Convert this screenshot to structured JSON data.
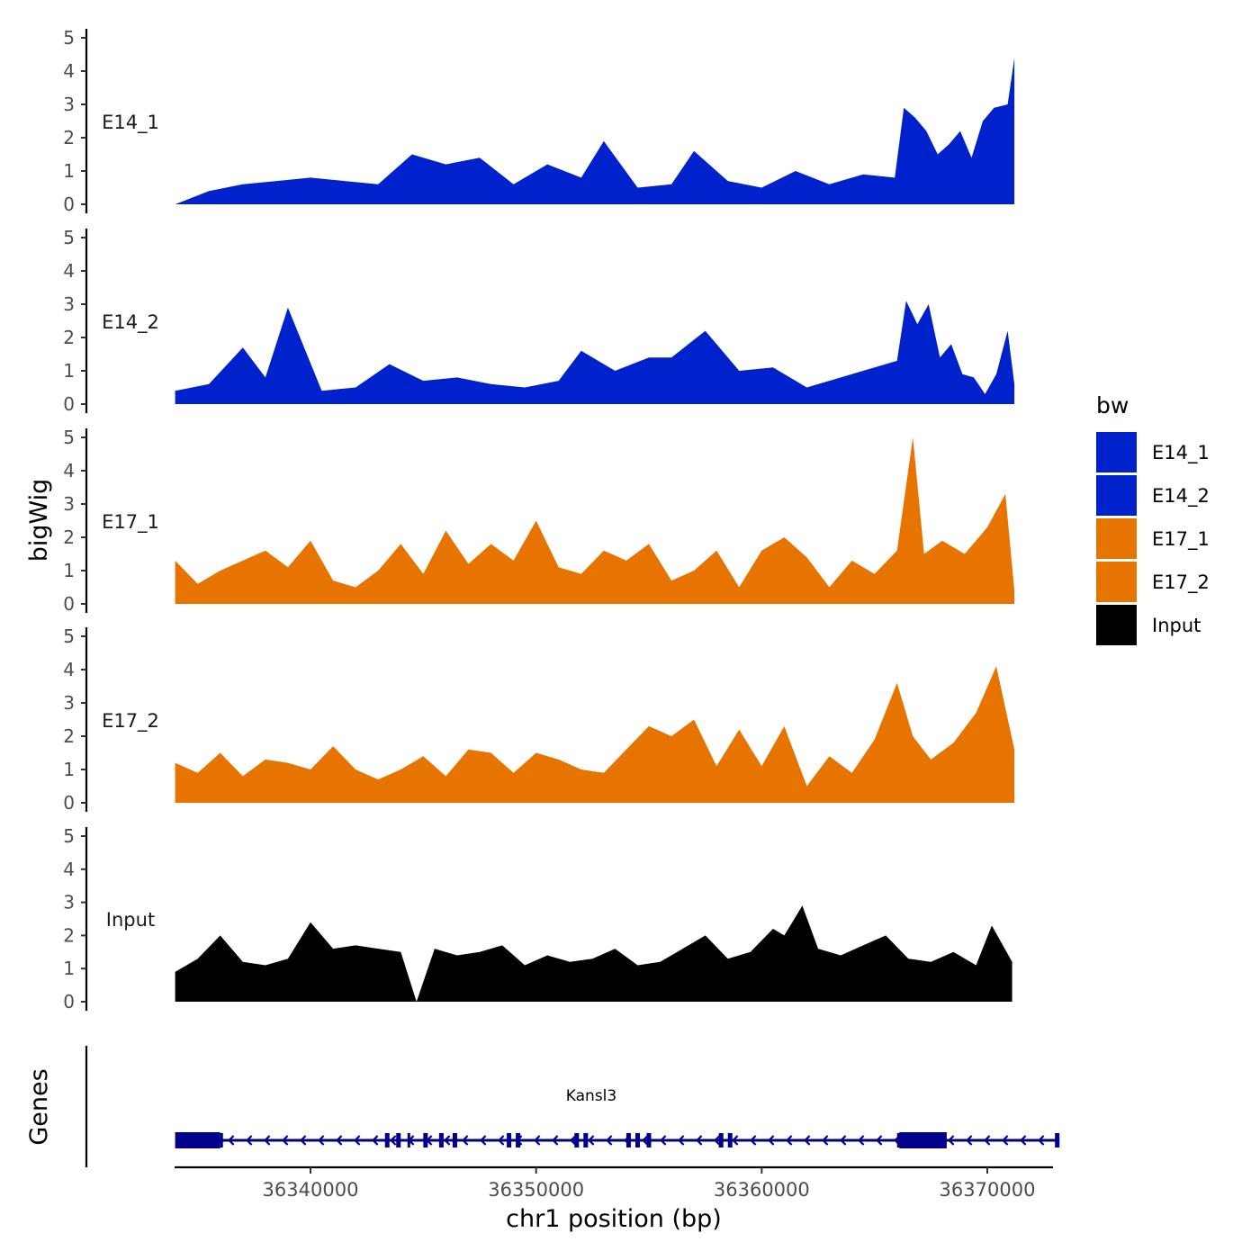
{
  "chart_data": {
    "type": "area",
    "ylabel": "bigWig",
    "xlabel": "chr1 position (bp)",
    "xlim": [
      36332500,
      36371500
    ],
    "xticks": [
      36340000,
      36350000,
      36360000,
      36370000
    ],
    "xtick_labels": [
      "36340000",
      "36350000",
      "36360000",
      "36370000"
    ],
    "ylim": [
      0,
      5
    ],
    "yticks": [
      0,
      1,
      2,
      3,
      4,
      5
    ],
    "ytick_labels": [
      "0",
      "1",
      "2",
      "3",
      "4",
      "5"
    ],
    "legend": {
      "title": "bw",
      "position": "right",
      "entries": [
        {
          "label": "E14_1",
          "color": "#0022CC"
        },
        {
          "label": "E14_2",
          "color": "#0022CC"
        },
        {
          "label": "E17_1",
          "color": "#E87400"
        },
        {
          "label": "E17_2",
          "color": "#E87400"
        },
        {
          "label": "Input",
          "color": "#000000"
        }
      ]
    },
    "series": [
      {
        "name": "E14_1",
        "color": "#0022CC",
        "x": [
          36334000,
          36335500,
          36337000,
          36338500,
          36340000,
          36341500,
          36343000,
          36344500,
          36346000,
          36347500,
          36349000,
          36350500,
          36352000,
          36353000,
          36354500,
          36356000,
          36357000,
          36358500,
          36360000,
          36361500,
          36363000,
          36364500,
          36365900,
          36366300,
          36366800,
          36367300,
          36367800,
          36368300,
          36368800,
          36369300,
          36369800,
          36370300,
          36370900,
          36371200
        ],
        "values": [
          0,
          0.4,
          0.6,
          0.7,
          0.8,
          0.7,
          0.6,
          1.5,
          1.2,
          1.4,
          0.6,
          1.2,
          0.8,
          1.9,
          0.5,
          0.6,
          1.6,
          0.7,
          0.5,
          1.0,
          0.6,
          0.9,
          0.8,
          2.9,
          2.6,
          2.2,
          1.5,
          1.8,
          2.2,
          1.4,
          2.5,
          2.9,
          3.0,
          4.4
        ]
      },
      {
        "name": "E14_2",
        "color": "#0022CC",
        "x": [
          36334000,
          36335500,
          36337000,
          36338000,
          36339000,
          36340500,
          36342000,
          36343500,
          36345000,
          36346500,
          36348000,
          36349500,
          36351000,
          36352000,
          36353500,
          36355000,
          36356000,
          36357500,
          36359000,
          36360500,
          36362000,
          36363500,
          36365000,
          36366000,
          36366400,
          36366900,
          36367400,
          36367900,
          36368400,
          36368900,
          36369400,
          36369900,
          36370400,
          36370900,
          36371200
        ],
        "values": [
          0.4,
          0.6,
          1.7,
          0.8,
          2.9,
          0.4,
          0.5,
          1.2,
          0.7,
          0.8,
          0.6,
          0.5,
          0.7,
          1.6,
          1.0,
          1.4,
          1.4,
          2.2,
          1.0,
          1.1,
          0.5,
          0.8,
          1.1,
          1.3,
          3.1,
          2.4,
          3.0,
          1.4,
          1.8,
          0.9,
          0.8,
          0.3,
          0.9,
          2.2,
          0.6
        ]
      },
      {
        "name": "E17_1",
        "color": "#E87400",
        "x": [
          36334000,
          36335000,
          36336000,
          36337000,
          36338000,
          36339000,
          36340000,
          36341000,
          36342000,
          36343000,
          36344000,
          36345000,
          36346000,
          36347000,
          36348000,
          36349000,
          36350000,
          36351000,
          36352000,
          36353000,
          36354000,
          36355000,
          36356000,
          36357000,
          36358000,
          36359000,
          36360000,
          36361000,
          36362000,
          36363000,
          36364000,
          36365000,
          36366000,
          36366700,
          36367200,
          36368000,
          36369000,
          36370000,
          36370800,
          36371200
        ],
        "values": [
          1.3,
          0.6,
          1.0,
          1.3,
          1.6,
          1.1,
          1.9,
          0.7,
          0.5,
          1.0,
          1.8,
          0.9,
          2.2,
          1.2,
          1.8,
          1.3,
          2.5,
          1.1,
          0.9,
          1.6,
          1.3,
          1.8,
          0.7,
          1.0,
          1.6,
          0.5,
          1.6,
          2.0,
          1.4,
          0.5,
          1.3,
          0.9,
          1.6,
          5.0,
          1.5,
          1.9,
          1.5,
          2.3,
          3.3,
          0.4
        ]
      },
      {
        "name": "E17_2",
        "color": "#E87400",
        "x": [
          36334000,
          36335000,
          36336000,
          36337000,
          36338000,
          36339000,
          36340000,
          36341000,
          36342000,
          36343000,
          36344000,
          36345000,
          36346000,
          36347000,
          36348000,
          36349000,
          36350000,
          36351000,
          36352000,
          36353000,
          36354000,
          36355000,
          36356000,
          36357000,
          36358000,
          36359000,
          36360000,
          36361000,
          36362000,
          36363000,
          36364000,
          36365000,
          36366000,
          36366700,
          36367500,
          36368500,
          36369500,
          36370400,
          36371200
        ],
        "values": [
          1.2,
          0.9,
          1.5,
          0.8,
          1.3,
          1.2,
          1.0,
          1.7,
          1.0,
          0.7,
          1.0,
          1.4,
          0.8,
          1.6,
          1.5,
          0.9,
          1.5,
          1.3,
          1.0,
          0.9,
          1.6,
          2.3,
          2.0,
          2.5,
          1.1,
          2.2,
          1.1,
          2.3,
          0.5,
          1.4,
          0.9,
          1.9,
          3.6,
          2.0,
          1.3,
          1.8,
          2.7,
          4.1,
          1.6
        ]
      },
      {
        "name": "Input",
        "color": "#000000",
        "x": [
          36334000,
          36335000,
          36336000,
          36337000,
          36338000,
          36339000,
          36340000,
          36341000,
          36342000,
          36343000,
          36344000,
          36344700,
          36345500,
          36346500,
          36347500,
          36348500,
          36349500,
          36350500,
          36351500,
          36352500,
          36353500,
          36354500,
          36355500,
          36356500,
          36357500,
          36358500,
          36359500,
          36360500,
          36361000,
          36361800,
          36362500,
          36363500,
          36364500,
          36365500,
          36366500,
          36367500,
          36368500,
          36369500,
          36370200,
          36371100
        ],
        "values": [
          0.9,
          1.3,
          2.0,
          1.2,
          1.1,
          1.3,
          2.4,
          1.6,
          1.7,
          1.6,
          1.5,
          0.0,
          1.6,
          1.4,
          1.5,
          1.7,
          1.1,
          1.4,
          1.2,
          1.3,
          1.6,
          1.1,
          1.2,
          1.6,
          2.0,
          1.3,
          1.5,
          2.2,
          2.0,
          2.9,
          1.6,
          1.4,
          1.7,
          2.0,
          1.3,
          1.2,
          1.5,
          1.1,
          2.3,
          1.2
        ]
      }
    ],
    "genes": {
      "track_label": "Genes",
      "name": "Kansl3",
      "start": 36334000,
      "end": 36373200,
      "strand": "-",
      "color": "#00008B",
      "exons": [
        [
          36334000,
          36336000
        ],
        [
          36336000,
          36336000
        ],
        [
          36343300,
          36343500
        ],
        [
          36343800,
          36344000
        ],
        [
          36344300,
          36344400
        ],
        [
          36345000,
          36345200
        ],
        [
          36345700,
          36345900
        ],
        [
          36346300,
          36346500
        ],
        [
          36348700,
          36348900
        ],
        [
          36349100,
          36349300
        ],
        [
          36351700,
          36351900
        ],
        [
          36352100,
          36352300
        ],
        [
          36354000,
          36354200
        ],
        [
          36354400,
          36354600
        ],
        [
          36354900,
          36355100
        ],
        [
          36358100,
          36358300
        ],
        [
          36358500,
          36358700
        ],
        [
          36366000,
          36366100
        ],
        [
          36366100,
          36368200
        ],
        [
          36373000,
          36373200
        ]
      ]
    }
  }
}
